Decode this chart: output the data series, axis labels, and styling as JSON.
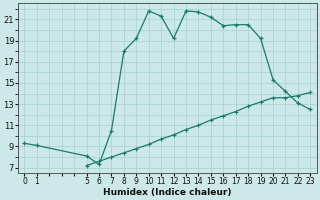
{
  "xlabel": "Humidex (Indice chaleur)",
  "bg_color": "#cce8e8",
  "grid_color": "#aad4d4",
  "line_color": "#1a7a6e",
  "xlim": [
    -0.5,
    23.5
  ],
  "ylim": [
    6.5,
    22.5
  ],
  "xticks": [
    0,
    1,
    2,
    3,
    4,
    5,
    6,
    7,
    8,
    9,
    10,
    11,
    12,
    13,
    14,
    15,
    16,
    17,
    18,
    19,
    20,
    21,
    22,
    23
  ],
  "xtick_labels": [
    "0",
    "1",
    "",
    "",
    "",
    "5",
    "6",
    "7",
    "8",
    "9",
    "10",
    "11",
    "12",
    "13",
    "14",
    "15",
    "16",
    "17",
    "18",
    "19",
    "20",
    "21",
    "22",
    "23"
  ],
  "yticks": [
    7,
    9,
    11,
    13,
    15,
    17,
    19,
    21
  ],
  "upper_x": [
    0,
    1,
    5,
    6,
    7,
    8,
    9,
    10,
    11,
    12,
    13,
    14,
    15,
    16,
    17,
    18,
    19,
    20,
    21,
    22,
    23
  ],
  "upper_y": [
    9.3,
    9.1,
    8.1,
    7.3,
    10.5,
    18.0,
    19.2,
    21.8,
    21.3,
    19.2,
    21.8,
    21.7,
    21.2,
    20.4,
    20.5,
    20.5,
    19.2,
    15.3,
    14.2,
    13.1,
    12.5
  ],
  "lower_x": [
    5,
    6,
    7,
    8,
    9,
    10,
    11,
    12,
    13,
    14,
    15,
    16,
    17,
    18,
    19,
    20,
    21,
    22,
    23
  ],
  "lower_y": [
    7.2,
    7.6,
    8.0,
    8.4,
    8.8,
    9.2,
    9.7,
    10.1,
    10.6,
    11.0,
    11.5,
    11.9,
    12.3,
    12.8,
    13.2,
    13.6,
    13.6,
    13.8,
    14.1
  ]
}
